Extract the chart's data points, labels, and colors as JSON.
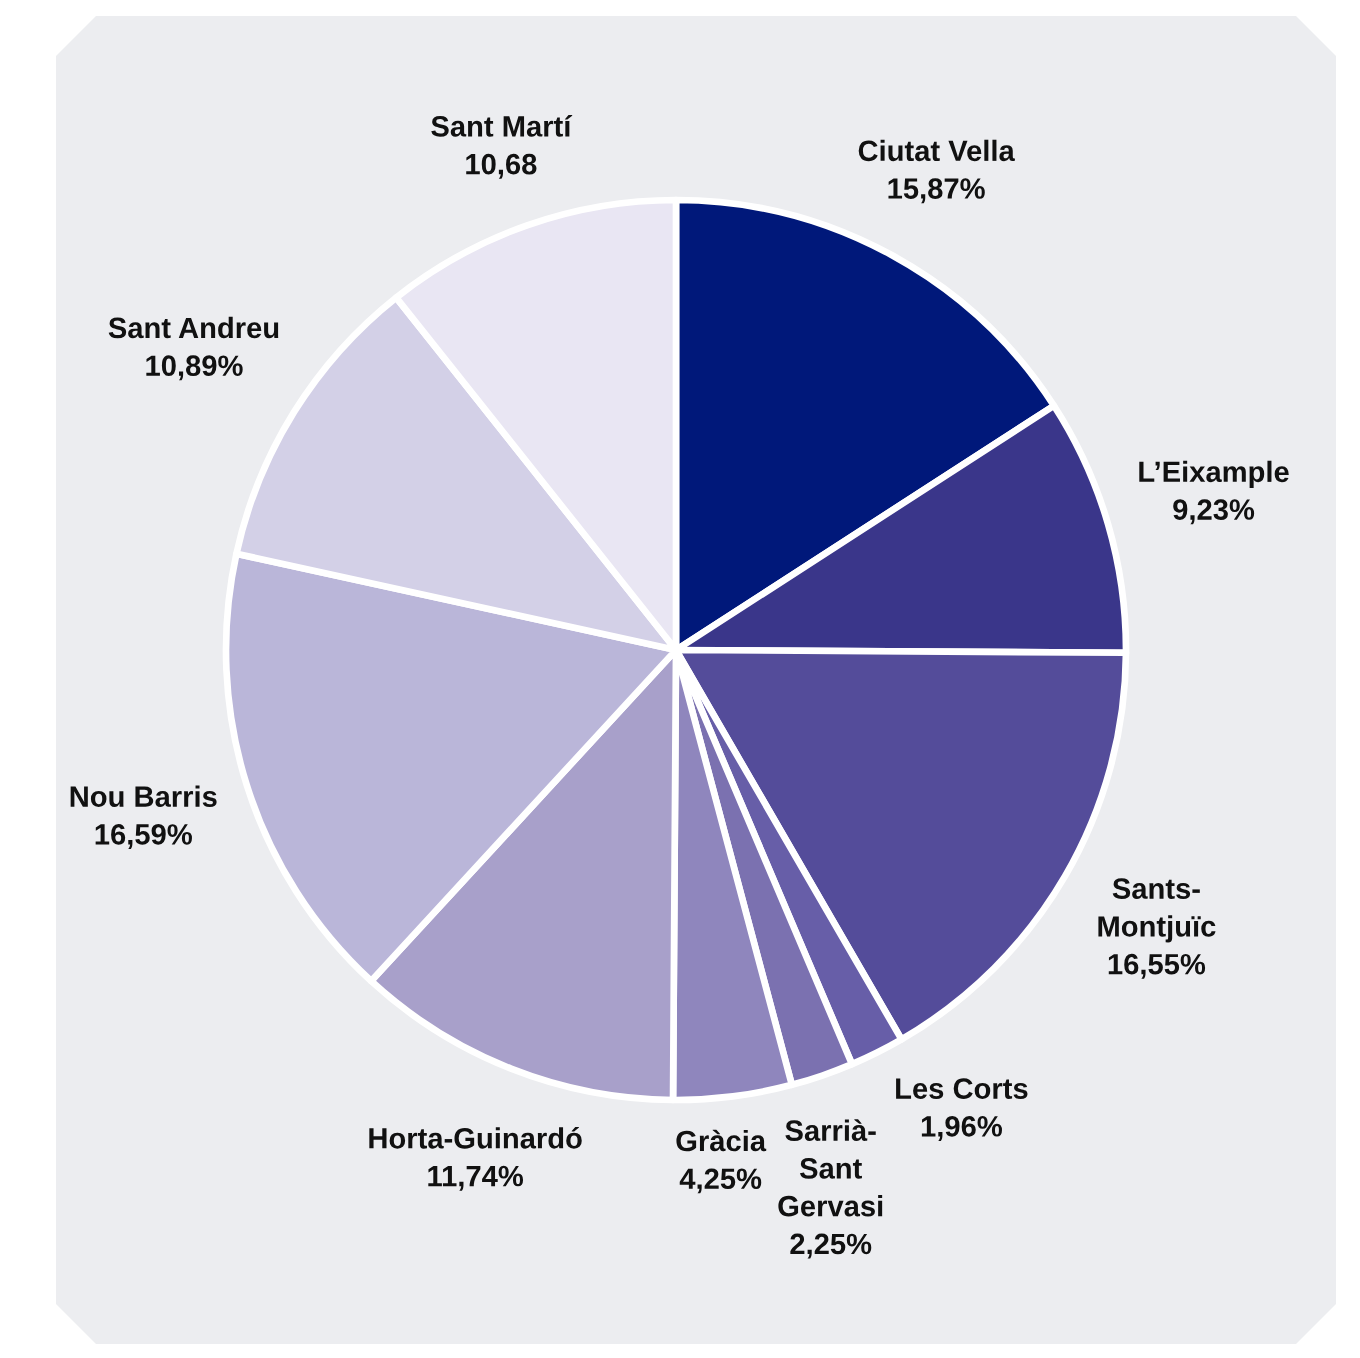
{
  "chart_data": {
    "type": "pie",
    "categories": [
      "Ciutat Vella",
      "L’Eixample",
      "Sants-\nMontjuïc",
      "Les Corts",
      "Sarrià-\nSant\nGervasi",
      "Gràcia",
      "Horta-Guinardó",
      "Nou Barris",
      "Sant Andreu",
      "Sant Martí"
    ],
    "values": [
      15.87,
      9.23,
      16.55,
      1.96,
      2.25,
      4.25,
      11.74,
      16.59,
      10.89,
      10.68
    ],
    "colors": [
      "#00187a",
      "#3a368a",
      "#544c9a",
      "#675ea8",
      "#7b71b0",
      "#8f86bd",
      "#a8a0ca",
      "#bab6d9",
      "#d3d0e7",
      "#e9e6f3"
    ],
    "value_labels": [
      "15,87%",
      "9,23%",
      "16,55%",
      "1,96%",
      "2,25%",
      "4,25%",
      "11,74%",
      "16,59%",
      "10,89%",
      "10,68"
    ]
  }
}
